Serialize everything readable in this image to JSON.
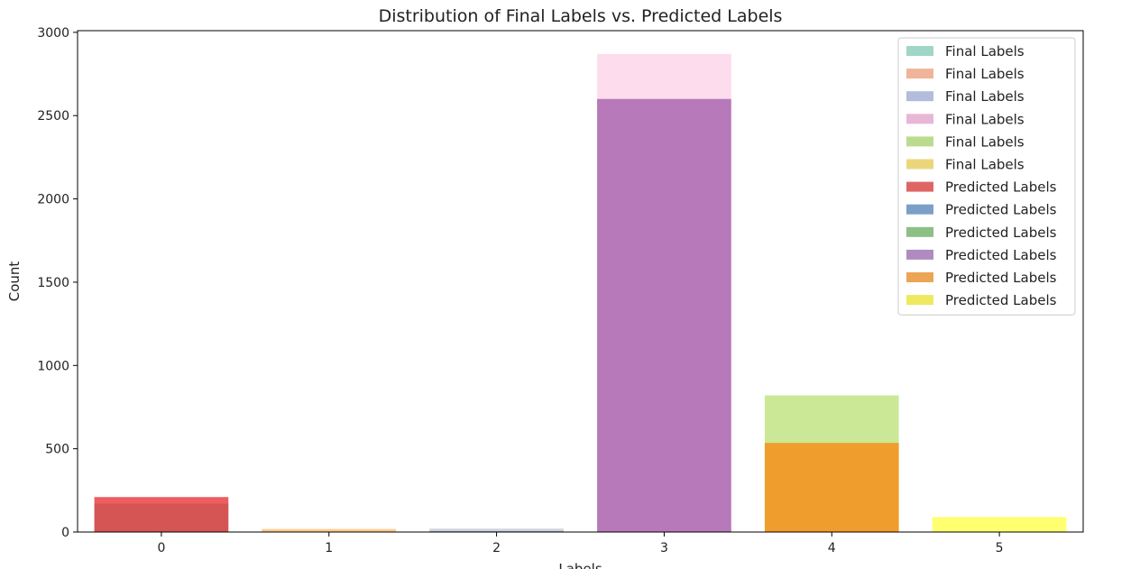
{
  "chart_data": {
    "type": "bar",
    "title": "Distribution of Final Labels vs. Predicted Labels",
    "xlabel": "Labels",
    "ylabel": "Count",
    "categories": [
      "0",
      "1",
      "2",
      "3",
      "4",
      "5"
    ],
    "ylim": [
      0,
      3010
    ],
    "yticks": [
      0,
      500,
      1000,
      1500,
      2000,
      2500,
      3000
    ],
    "grid": false,
    "legend_position": "top-right",
    "series": [
      {
        "name": "Final Labels",
        "values": [
          170,
          18,
          20,
          2870,
          820,
          0
        ],
        "colors": [
          "#8dd3c7",
          "#fdb462",
          "#bebada",
          "#fccde5",
          "#b3de69",
          "#ffed6f"
        ],
        "legend_colors": [
          "#9fd6c8",
          "#f0b49a",
          "#b2bcdc",
          "#e8b6d6",
          "#bcdc8d",
          "#ebd67c"
        ]
      },
      {
        "name": "Predicted Labels",
        "values": [
          210,
          0,
          5,
          2600,
          535,
          90
        ],
        "colors": [
          "#e41a1c",
          "#377eb8",
          "#4daf4a",
          "#984ea3",
          "#ff7f00",
          "#ffff33"
        ],
        "legend_colors": [
          "#df6565",
          "#7ba0c8",
          "#8cc085",
          "#b08bc1",
          "#eca455",
          "#efe962"
        ]
      }
    ],
    "legend_entries": [
      "Final Labels",
      "Final Labels",
      "Final Labels",
      "Final Labels",
      "Final Labels",
      "Final Labels",
      "Predicted Labels",
      "Predicted Labels",
      "Predicted Labels",
      "Predicted Labels",
      "Predicted Labels",
      "Predicted Labels"
    ]
  }
}
